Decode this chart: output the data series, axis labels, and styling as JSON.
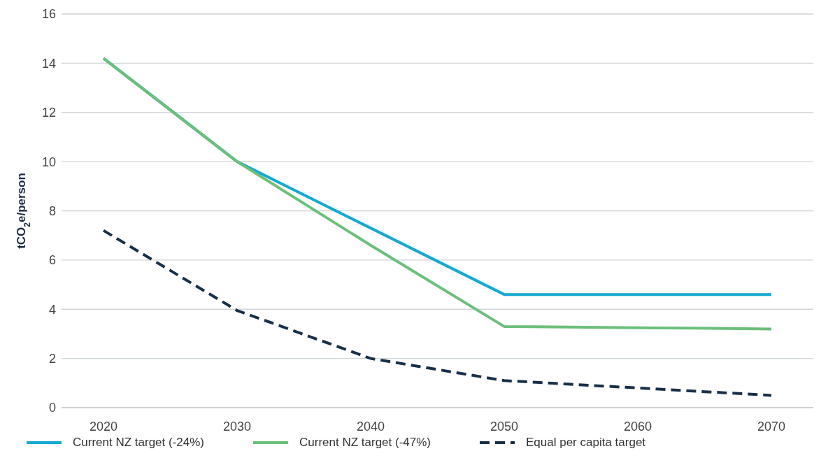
{
  "chart_data": {
    "type": "line",
    "ylabel": "tCO$_{2}$e/person",
    "categories": [
      "2020",
      "2030",
      "2040",
      "2050",
      "2060",
      "2070"
    ],
    "series": [
      {
        "name": "Current NZ target (-24%)",
        "color": "#14a9d2",
        "values": [
          14.2,
          10,
          7.3,
          4.6,
          4.6,
          4.6
        ],
        "line_style": "solid"
      },
      {
        "name": "Current NZ target (-47%)",
        "color": "#6cbf7b",
        "values": [
          14.2,
          10,
          6.6,
          3.3,
          3.25,
          3.2
        ],
        "line_style": "solid"
      },
      {
        "name": "Equal per capita target",
        "color": "#17304a",
        "values": [
          7.2,
          3.95,
          2.0,
          1.1,
          0.8,
          0.5
        ],
        "line_style": "dashed"
      }
    ],
    "ylim": [
      0,
      16
    ],
    "yticks": [
      0,
      2,
      4,
      6,
      8,
      10,
      12,
      14,
      16
    ],
    "grid": "y",
    "legend": "bottom",
    "marker": "none"
  }
}
